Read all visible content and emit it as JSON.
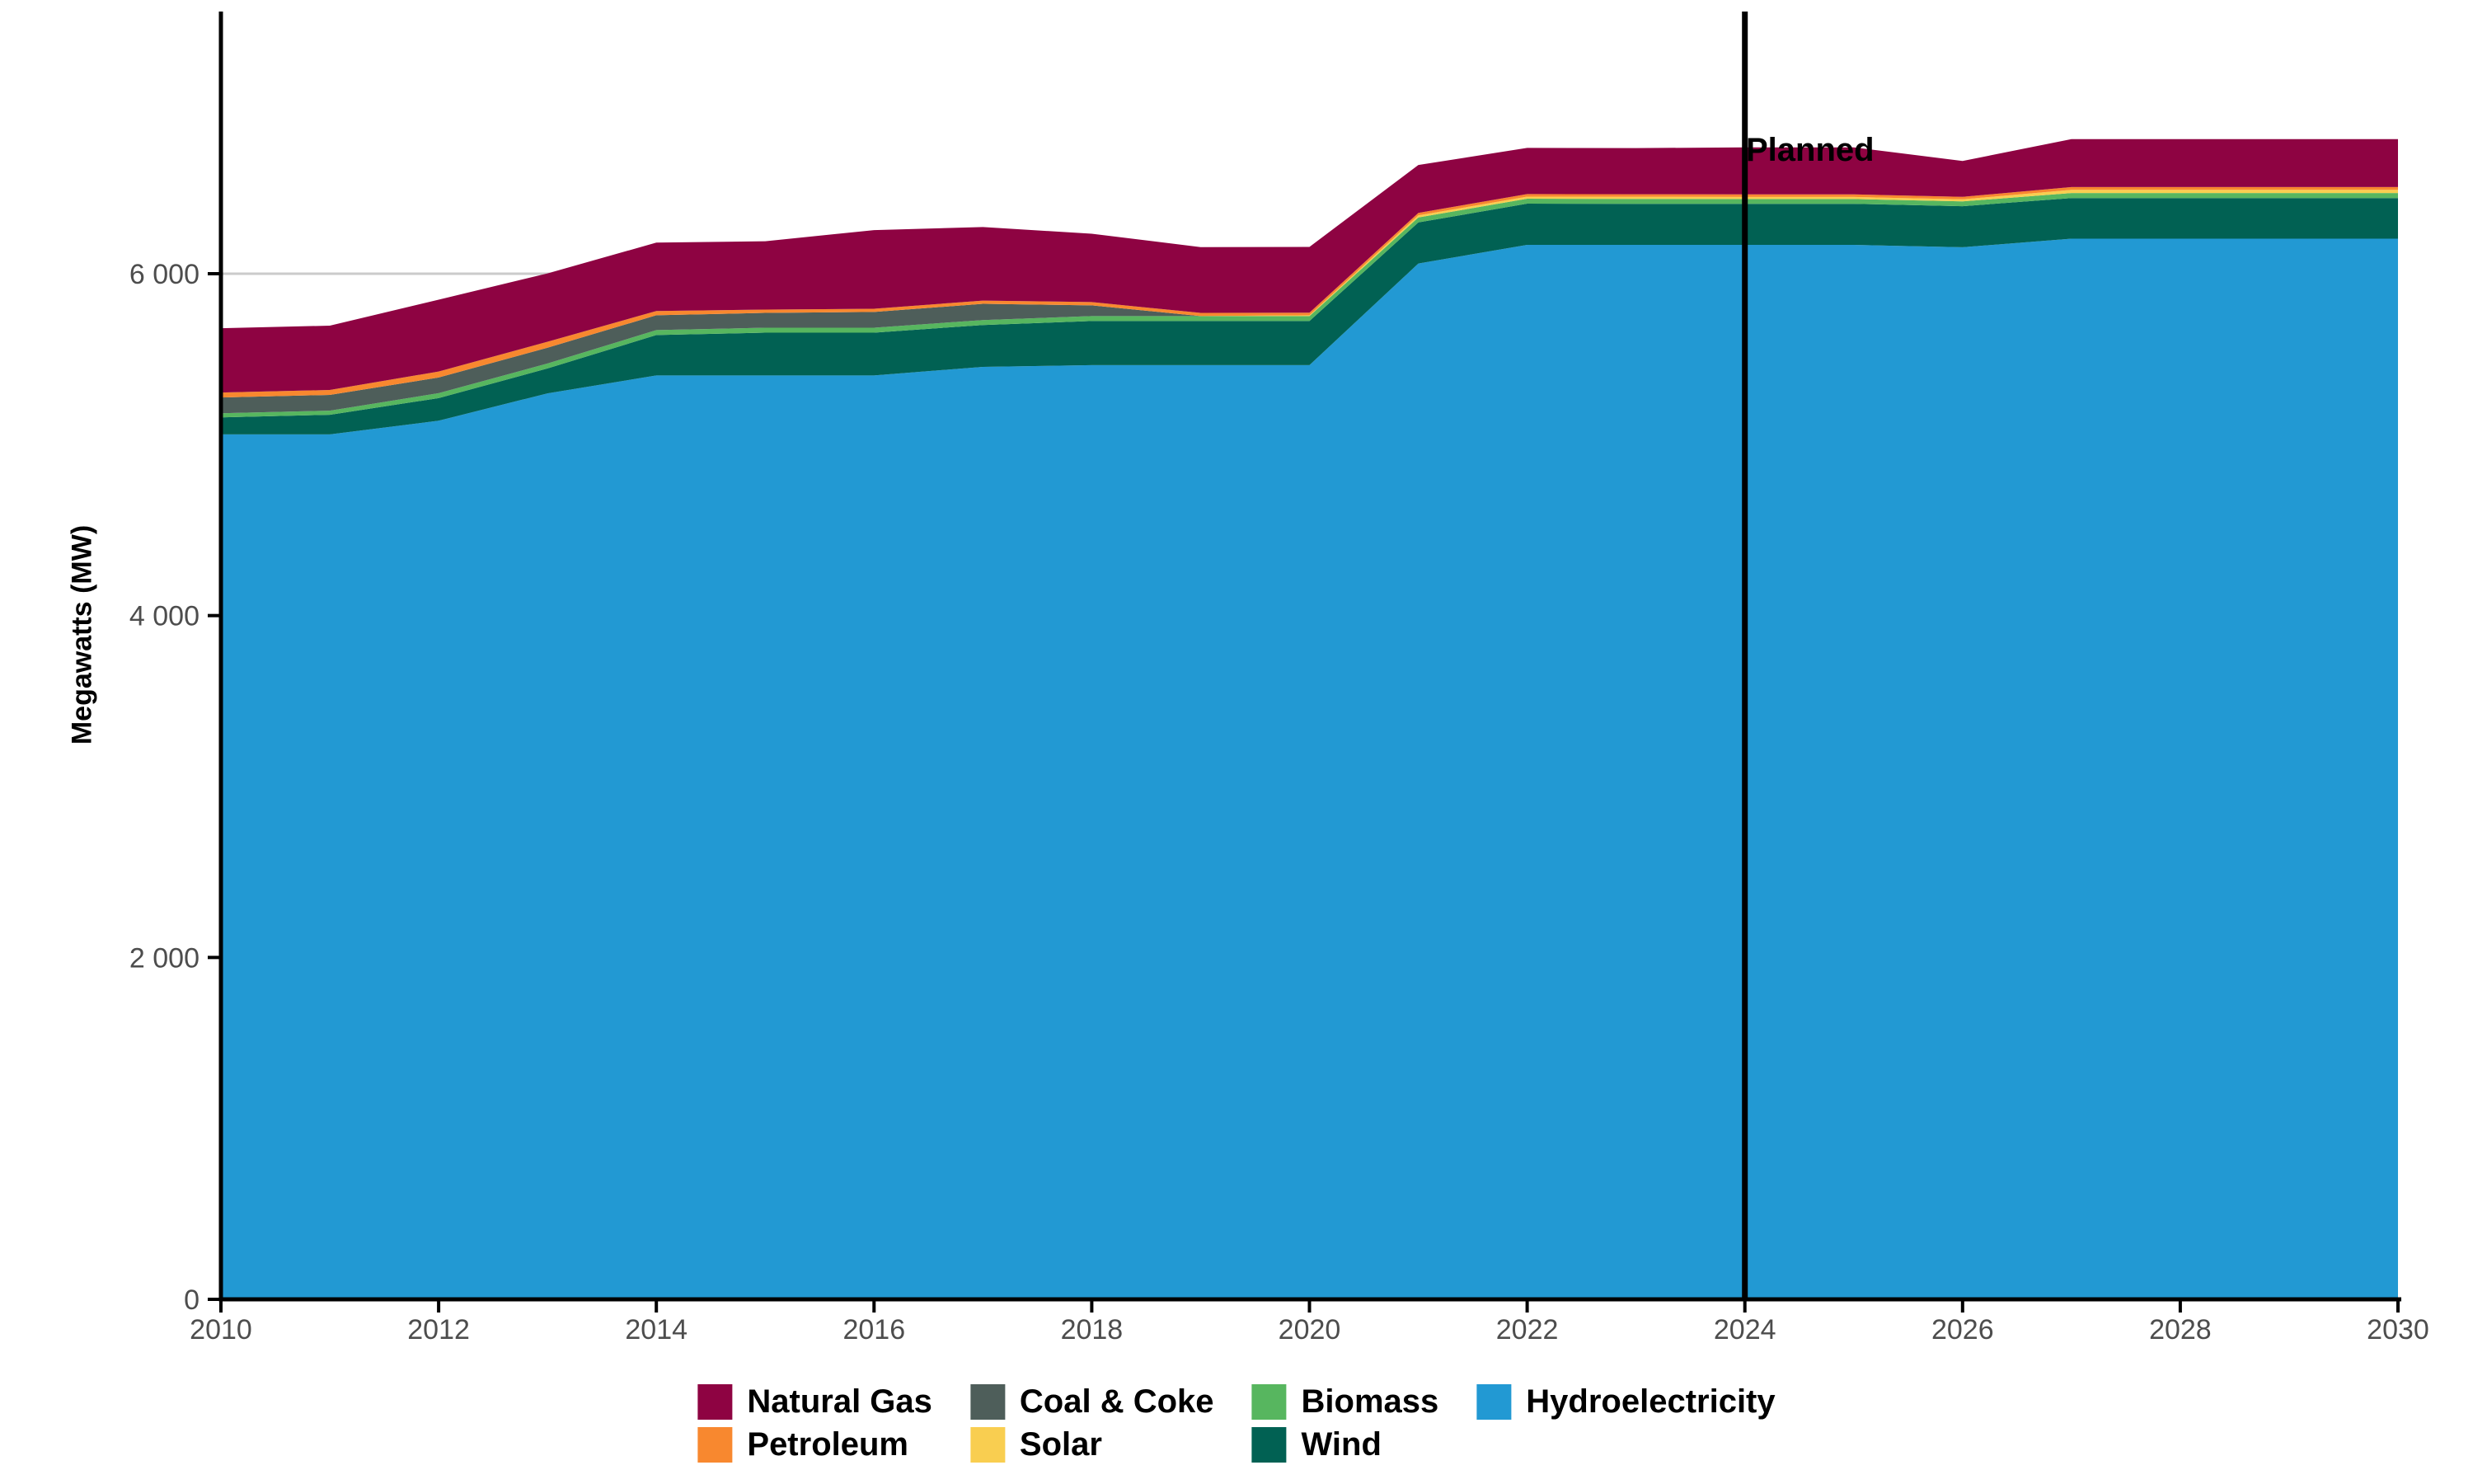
{
  "chart_data": {
    "type": "area",
    "stacked": true,
    "title": "",
    "xlabel": "",
    "ylabel": "Megawatts (MW)",
    "xlim": [
      2010,
      2030
    ],
    "ylim": [
      0,
      7530
    ],
    "grid": "major-y-gridlines-light-gray",
    "legend_position": "bottom",
    "x": [
      2010,
      2011,
      2012,
      2013,
      2014,
      2015,
      2016,
      2017,
      2018,
      2019,
      2020,
      2021,
      2022,
      2023,
      2024,
      2025,
      2026,
      2027,
      2028,
      2029,
      2030
    ],
    "series": [
      {
        "name": "Hydroelectricity",
        "color": "#2299D3",
        "values": [
          5060,
          5060,
          5140,
          5300,
          5405,
          5405,
          5405,
          5455,
          5465,
          5465,
          5465,
          6060,
          6169,
          6169,
          6169,
          6169,
          6155,
          6205,
          6205,
          6205,
          6205
        ]
      },
      {
        "name": "Wind",
        "color": "#016153",
        "values": [
          100,
          115,
          132,
          146,
          236,
          250,
          250,
          245,
          258,
          258,
          258,
          240,
          241,
          240,
          240,
          240,
          240,
          238,
          238,
          238,
          238
        ]
      },
      {
        "name": "Biomass",
        "color": "#57B65F",
        "values": [
          24,
          24,
          29,
          29,
          29,
          29,
          29,
          29,
          29,
          29,
          29,
          29,
          29,
          29,
          28,
          28,
          28,
          29,
          29,
          29,
          29
        ]
      },
      {
        "name": "Solar",
        "color": "#F9CE50",
        "values": [
          0,
          0,
          0,
          0,
          0,
          0,
          0,
          0,
          0,
          0,
          5,
          12,
          12,
          12,
          12,
          12,
          12,
          19,
          19,
          19,
          19
        ]
      },
      {
        "name": "Coal & Coke",
        "color": "#4E5E5A",
        "values": [
          92,
          92,
          92,
          92,
          87,
          87,
          92,
          95,
          63,
          0,
          0,
          0,
          0,
          0,
          0,
          0,
          0,
          0,
          0,
          0,
          0
        ]
      },
      {
        "name": "Petroleum",
        "color": "#F8882F",
        "values": [
          29,
          29,
          35,
          35,
          25,
          19,
          19,
          19,
          19,
          19,
          15,
          15,
          15,
          15,
          15,
          15,
          15,
          16,
          16,
          16,
          16
        ]
      },
      {
        "name": "Natural Gas",
        "color": "#8E0342",
        "values": [
          376,
          376,
          420,
          400,
          400,
          400,
          460,
          430,
          400,
          385,
          385,
          280,
          270,
          270,
          275,
          275,
          210,
          280,
          280,
          280,
          280
        ]
      }
    ],
    "y_ticks": [
      {
        "value": 0,
        "label": "0"
      },
      {
        "value": 2000,
        "label": "2 000"
      },
      {
        "value": 4000,
        "label": "4 000"
      },
      {
        "value": 6000,
        "label": "6 000"
      }
    ],
    "x_ticks": [
      {
        "value": 2010,
        "label": "2010"
      },
      {
        "value": 2012,
        "label": "2012"
      },
      {
        "value": 2014,
        "label": "2014"
      },
      {
        "value": 2016,
        "label": "2016"
      },
      {
        "value": 2018,
        "label": "2018"
      },
      {
        "value": 2020,
        "label": "2020"
      },
      {
        "value": 2022,
        "label": "2022"
      },
      {
        "value": 2024,
        "label": "2024"
      },
      {
        "value": 2026,
        "label": "2026"
      },
      {
        "value": 2028,
        "label": "2028"
      },
      {
        "value": 2030,
        "label": "2030"
      }
    ],
    "annotation": {
      "label": "Planned",
      "x": 2024
    },
    "legend_columns": [
      [
        "Natural Gas",
        "Petroleum"
      ],
      [
        "Coal & Coke",
        "Solar"
      ],
      [
        "Biomass",
        "Wind"
      ],
      [
        "Hydroelectricity"
      ]
    ],
    "axis_colors": {
      "axis_line": "#000000",
      "tick_label": "#4d4d4d",
      "gridline": "#cbcbcb",
      "planned_line": "#000000"
    }
  }
}
